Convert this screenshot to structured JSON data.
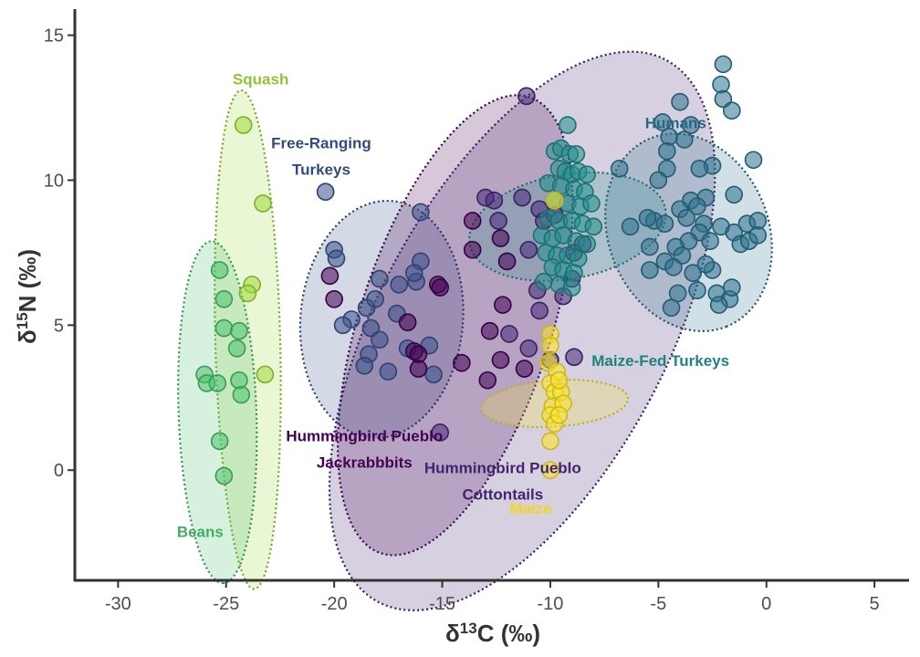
{
  "chart_data": {
    "type": "scatter",
    "xlabel_main": "δ",
    "xlabel_sup": "13",
    "xlabel_rest": "C (‰)",
    "ylabel_main": "δ",
    "ylabel_sup": "15",
    "ylabel_rest": "N (‰)",
    "xlim": [
      -32,
      6.6
    ],
    "ylim": [
      -3.8,
      15.9
    ],
    "x_ticks": [
      -30,
      -25,
      -20,
      -15,
      -10,
      -5,
      0,
      5
    ],
    "y_ticks": [
      0,
      5,
      10,
      15
    ],
    "x_tick_labels": [
      "-30",
      "-25",
      "-20",
      "-15",
      "-10",
      "-5",
      "0",
      "5"
    ],
    "y_tick_labels": [
      "0",
      "5",
      "10",
      "15"
    ],
    "grid": false,
    "series": [
      {
        "name": "Squash",
        "label_lines": [
          "Squash"
        ],
        "label_at": [
          -23.4,
          13.3
        ],
        "color": "#a0da39",
        "ellipse": {
          "cx": -24,
          "cy": 4.5,
          "rx": 1.5,
          "ry": 8.6,
          "angle": 88.5
        },
        "points": [
          [
            -24.2,
            11.9
          ],
          [
            -23.3,
            9.2
          ],
          [
            -23.8,
            6.4
          ],
          [
            -24.0,
            6.1
          ],
          [
            -23.2,
            3.3
          ]
        ]
      },
      {
        "name": "Beans",
        "label_lines": [
          "Beans"
        ],
        "label_at": [
          -26.2,
          -2.3
        ],
        "color": "#4ac16d",
        "ellipse": {
          "cx": -25.4,
          "cy": 2.0,
          "rx": 1.8,
          "ry": 5.9,
          "angle": 88
        },
        "points": [
          [
            -25.3,
            6.9
          ],
          [
            -25.1,
            5.9
          ],
          [
            -25.1,
            4.9
          ],
          [
            -24.4,
            4.8
          ],
          [
            -24.5,
            4.2
          ],
          [
            -26.0,
            3.3
          ],
          [
            -25.9,
            3.0
          ],
          [
            -25.4,
            3.0
          ],
          [
            -24.4,
            3.1
          ],
          [
            -24.3,
            2.6
          ],
          [
            -25.3,
            1.0
          ],
          [
            -25.1,
            -0.2
          ]
        ]
      },
      {
        "name": "Free-Ranging Turkeys",
        "label_lines": [
          "Free-Ranging",
          "Turkeys"
        ],
        "label_at": [
          -20.6,
          11.1
        ],
        "color": "#3b528b",
        "ellipse": {
          "cx": -17.8,
          "cy": 5.2,
          "rx": 5.5,
          "ry": 2.8,
          "angle": 5
        },
        "points": [
          [
            -20.4,
            9.6
          ],
          [
            -16.0,
            8.9
          ],
          [
            -20.0,
            7.6
          ],
          [
            -19.9,
            7.3
          ],
          [
            -16.0,
            7.2
          ],
          [
            -17.9,
            6.6
          ],
          [
            -17.0,
            6.4
          ],
          [
            -16.2,
            6.5
          ],
          [
            -18.5,
            5.6
          ],
          [
            -19.2,
            5.2
          ],
          [
            -19.6,
            5.0
          ],
          [
            -18.3,
            4.9
          ],
          [
            -17.1,
            5.4
          ],
          [
            -17.9,
            4.5
          ],
          [
            -16.6,
            4.2
          ],
          [
            -15.6,
            4.3
          ],
          [
            -18.4,
            4.0
          ],
          [
            -18.6,
            3.6
          ],
          [
            -17.5,
            3.4
          ],
          [
            -15.4,
            3.3
          ],
          [
            -16.3,
            6.8
          ],
          [
            -18.1,
            5.9
          ]
        ]
      },
      {
        "name": "Hummingbird Pueblo Jackrabbbits",
        "label_lines": [
          "Hummingbird Pueblo",
          "Jackrabbbits"
        ],
        "label_at": [
          -18.6,
          1.0
        ],
        "color": "#440154",
        "ellipse": {
          "cx": -14.4,
          "cy": 5.0,
          "rx": 11.1,
          "ry": 3.3,
          "angle": 18
        },
        "points": [
          [
            -13.6,
            8.6
          ],
          [
            -12.3,
            8.0
          ],
          [
            -13.6,
            7.6
          ],
          [
            -12.0,
            7.2
          ],
          [
            -20.2,
            6.7
          ],
          [
            -15.2,
            6.4
          ],
          [
            -20.0,
            5.9
          ],
          [
            -12.2,
            5.7
          ],
          [
            -16.6,
            5.1
          ],
          [
            -12.8,
            4.8
          ],
          [
            -16.3,
            4.1
          ],
          [
            -16.1,
            4.0
          ],
          [
            -14.1,
            3.7
          ],
          [
            -12.3,
            3.8
          ],
          [
            -16.1,
            3.5
          ],
          [
            -11.2,
            3.5
          ],
          [
            -12.9,
            3.1
          ],
          [
            -15.1,
            6.3
          ]
        ]
      },
      {
        "name": "Hummingbird Pueblo Cottontails",
        "label_lines": [
          "Hummingbird Pueblo",
          "Cottontails"
        ],
        "label_at": [
          -12.2,
          -0.1
        ],
        "color": "#482878",
        "ellipse": {
          "cx": -11.3,
          "cy": 4.8,
          "rx": 14.2,
          "ry": 5.0,
          "angle": 28
        },
        "points": [
          [
            -11.1,
            12.9
          ],
          [
            -13.0,
            9.4
          ],
          [
            -12.6,
            9.3
          ],
          [
            -11.3,
            9.4
          ],
          [
            -10.5,
            9.0
          ],
          [
            -10.3,
            8.6
          ],
          [
            -12.4,
            8.6
          ],
          [
            -11.0,
            7.6
          ],
          [
            -9.8,
            8.8
          ],
          [
            -8.9,
            7.5
          ],
          [
            -8.5,
            7.8
          ],
          [
            -10.6,
            6.2
          ],
          [
            -9.4,
            6.0
          ],
          [
            -11.9,
            4.7
          ],
          [
            -11.0,
            4.2
          ],
          [
            -10.0,
            3.8
          ],
          [
            -8.9,
            3.9
          ],
          [
            -10.5,
            5.5
          ],
          [
            -9.0,
            6.6
          ],
          [
            -15.1,
            1.3
          ]
        ]
      },
      {
        "name": "Maize-Fed Turkeys",
        "label_lines": [
          "Maize-Fed Turkeys"
        ],
        "label_at": [
          -4.9,
          3.6
        ],
        "color": "#21908d",
        "ellipse": {
          "cx": -9.2,
          "cy": 8.4,
          "rx": 4.6,
          "ry": 1.8,
          "angle": 80
        },
        "points": [
          [
            -9.2,
            11.9
          ],
          [
            -9.8,
            11.0
          ],
          [
            -9.5,
            11.1
          ],
          [
            -9.1,
            10.9
          ],
          [
            -8.8,
            10.9
          ],
          [
            -9.6,
            10.4
          ],
          [
            -9.3,
            10.3
          ],
          [
            -9.0,
            10.2
          ],
          [
            -8.7,
            10.3
          ],
          [
            -8.3,
            10.2
          ],
          [
            -10.1,
            9.9
          ],
          [
            -9.5,
            9.8
          ],
          [
            -8.9,
            9.7
          ],
          [
            -8.4,
            9.6
          ],
          [
            -9.8,
            9.3
          ],
          [
            -9.2,
            9.2
          ],
          [
            -8.6,
            9.1
          ],
          [
            -8.1,
            9.2
          ],
          [
            -10.1,
            8.7
          ],
          [
            -9.6,
            8.6
          ],
          [
            -9.0,
            8.6
          ],
          [
            -8.5,
            8.5
          ],
          [
            -8.0,
            8.4
          ],
          [
            -10.4,
            8.1
          ],
          [
            -9.9,
            8.0
          ],
          [
            -9.4,
            8.1
          ],
          [
            -8.8,
            7.9
          ],
          [
            -8.3,
            7.8
          ],
          [
            -10.2,
            7.5
          ],
          [
            -9.7,
            7.4
          ],
          [
            -9.2,
            7.4
          ],
          [
            -8.7,
            7.3
          ],
          [
            -9.9,
            7.0
          ],
          [
            -9.4,
            6.9
          ],
          [
            -8.9,
            6.8
          ],
          [
            -10.3,
            6.5
          ],
          [
            -9.6,
            6.4
          ],
          [
            -9.0,
            6.3
          ]
        ]
      },
      {
        "name": "Humans",
        "label_lines": [
          "Humans"
        ],
        "label_at": [
          -4.2,
          11.8
        ],
        "color": "#2c728e",
        "ellipse": {
          "cx": -3.6,
          "cy": 8.2,
          "rx": 3.7,
          "ry": 3.5,
          "angle": 68
        },
        "points": [
          [
            -2.0,
            14.0
          ],
          [
            -2.1,
            13.3
          ],
          [
            -2.0,
            12.8
          ],
          [
            -4.0,
            12.7
          ],
          [
            -1.6,
            12.4
          ],
          [
            -4.8,
            12.0
          ],
          [
            -3.5,
            11.9
          ],
          [
            -4.5,
            11.5
          ],
          [
            -3.8,
            11.4
          ],
          [
            -4.6,
            11.0
          ],
          [
            -2.5,
            10.5
          ],
          [
            -0.6,
            10.7
          ],
          [
            -4.6,
            10.4
          ],
          [
            -3.1,
            10.4
          ],
          [
            -6.8,
            10.4
          ],
          [
            -5.0,
            10.0
          ],
          [
            -3.5,
            9.3
          ],
          [
            -1.5,
            9.5
          ],
          [
            -2.8,
            9.4
          ],
          [
            -3.2,
            9.1
          ],
          [
            -4.0,
            9.0
          ],
          [
            -3.7,
            8.7
          ],
          [
            -2.9,
            8.5
          ],
          [
            -5.2,
            8.6
          ],
          [
            -5.5,
            8.7
          ],
          [
            -4.7,
            8.5
          ],
          [
            -3.1,
            8.2
          ],
          [
            -2.1,
            8.4
          ],
          [
            -1.5,
            8.2
          ],
          [
            -0.9,
            8.5
          ],
          [
            -0.4,
            8.6
          ],
          [
            -6.3,
            8.4
          ],
          [
            -3.6,
            7.9
          ],
          [
            -4.2,
            7.7
          ],
          [
            -3.9,
            7.4
          ],
          [
            -2.6,
            7.9
          ],
          [
            -1.2,
            7.8
          ],
          [
            -0.8,
            7.9
          ],
          [
            -0.4,
            8.1
          ],
          [
            -5.4,
            7.7
          ],
          [
            -4.7,
            7.2
          ],
          [
            -4.3,
            7.0
          ],
          [
            -3.4,
            6.8
          ],
          [
            -2.5,
            6.9
          ],
          [
            -2.8,
            7.1
          ],
          [
            -4.1,
            6.1
          ],
          [
            -3.2,
            6.2
          ],
          [
            -2.3,
            6.1
          ],
          [
            -1.7,
            5.9
          ],
          [
            -2.2,
            5.7
          ],
          [
            -4.4,
            5.6
          ],
          [
            -5.4,
            6.9
          ],
          [
            -1.6,
            6.3
          ]
        ]
      },
      {
        "name": "Maize",
        "label_lines": [
          "Maize"
        ],
        "label_at": [
          -10.9,
          -1.5
        ],
        "color": "#fde725",
        "ellipse": {
          "cx": -9.8,
          "cy": 2.3,
          "rx": 3.4,
          "ry": 0.8,
          "angle": 86
        },
        "points": [
          [
            -9.8,
            9.3
          ],
          [
            -10.0,
            4.7
          ],
          [
            -10.0,
            4.3
          ],
          [
            -10.1,
            3.7
          ],
          [
            -9.7,
            3.4
          ],
          [
            -10.0,
            3.0
          ],
          [
            -9.8,
            2.7
          ],
          [
            -9.5,
            2.7
          ],
          [
            -9.9,
            2.2
          ],
          [
            -9.4,
            2.3
          ],
          [
            -10.0,
            1.9
          ],
          [
            -9.8,
            1.6
          ],
          [
            -10.0,
            1.0
          ],
          [
            -10.0,
            0.0
          ],
          [
            -9.6,
            1.9
          ],
          [
            -9.6,
            3.1
          ]
        ]
      }
    ]
  }
}
